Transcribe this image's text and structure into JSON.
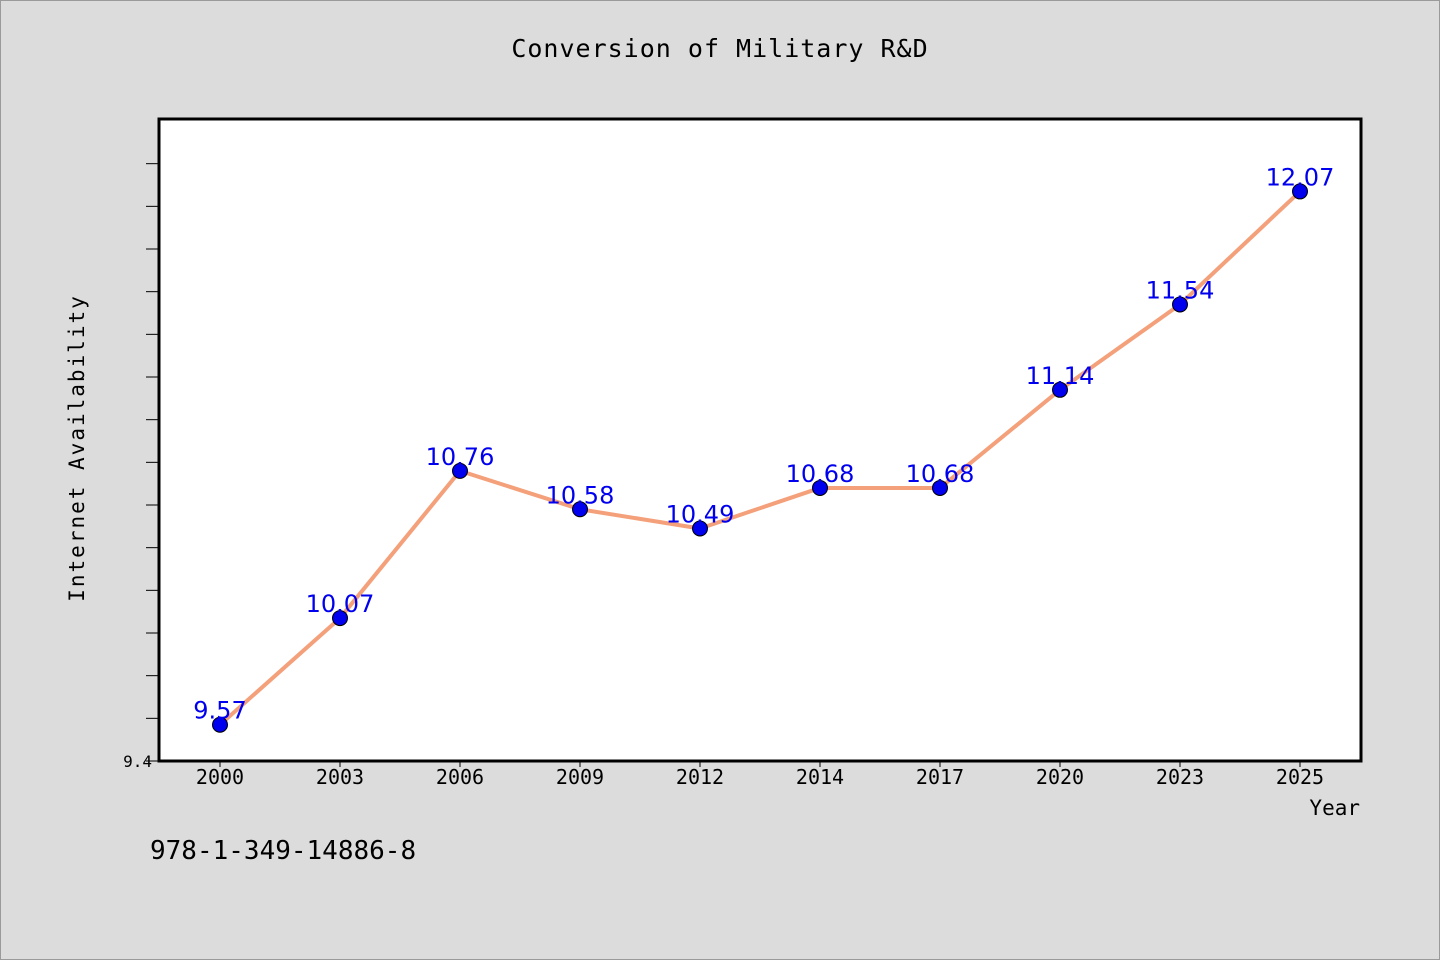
{
  "chart_data": {
    "type": "line",
    "title": "Conversion of Military R&D",
    "xlabel": "Year",
    "ylabel": "Internet Availability",
    "categories": [
      "2000",
      "2003",
      "2006",
      "2009",
      "2012",
      "2014",
      "2017",
      "2020",
      "2023",
      "2025"
    ],
    "series": [
      {
        "values": [
          9.57,
          10.07,
          10.76,
          10.58,
          10.49,
          10.68,
          10.68,
          11.14,
          11.54,
          12.07
        ],
        "data_labels": [
          "9.57",
          "10.07",
          "10.76",
          "10.58",
          "10.49",
          "10.68",
          "10.68",
          "11.14",
          "11.54",
          "12.07"
        ],
        "line_color": "#f4a07a",
        "marker_color": "#0000ee",
        "label_color": "#0000ee"
      }
    ],
    "ylim": [
      9.4,
      12.4
    ],
    "yticks_labeled": [
      "9.4"
    ],
    "ytick_step": 0.2,
    "grid": false,
    "legend": "none"
  },
  "footer": {
    "isbn": "978-1-349-14886-8"
  },
  "colors": {
    "background": "#dcdcdc",
    "plot_background": "#ffffff"
  }
}
